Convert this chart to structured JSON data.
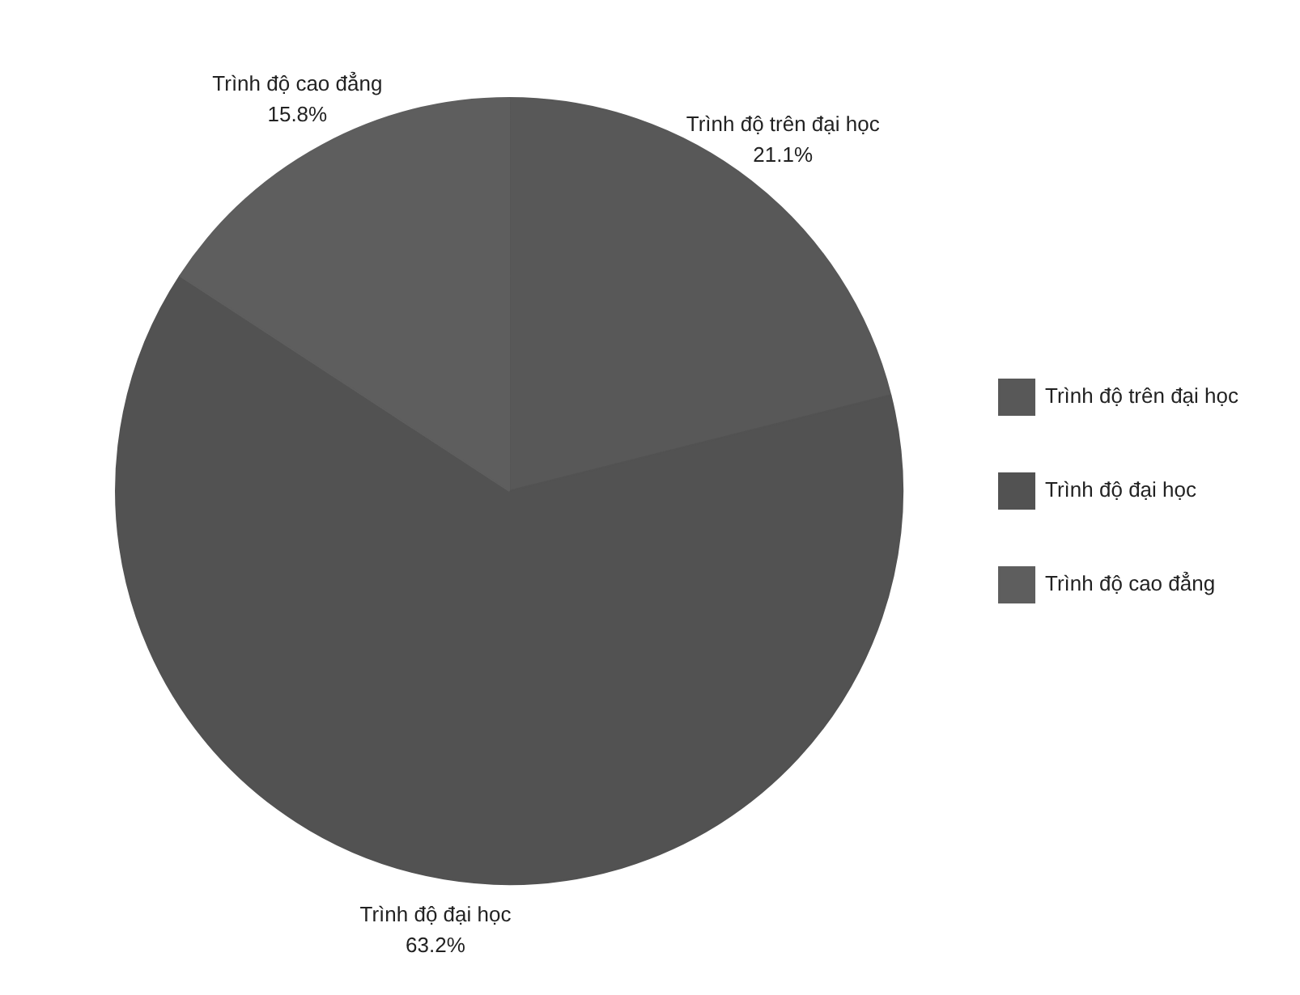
{
  "chart_data": {
    "type": "pie",
    "categories": [
      "Trình độ trên đại học",
      "Trình độ đại học",
      "Trình độ cao đẳng"
    ],
    "values": [
      21.1,
      63.2,
      15.8
    ],
    "colors": [
      "#585858",
      "#525252",
      "#5e5e5e"
    ],
    "value_labels": [
      "21.1%",
      "63.2%",
      "15.8%"
    ],
    "legend": "right"
  }
}
